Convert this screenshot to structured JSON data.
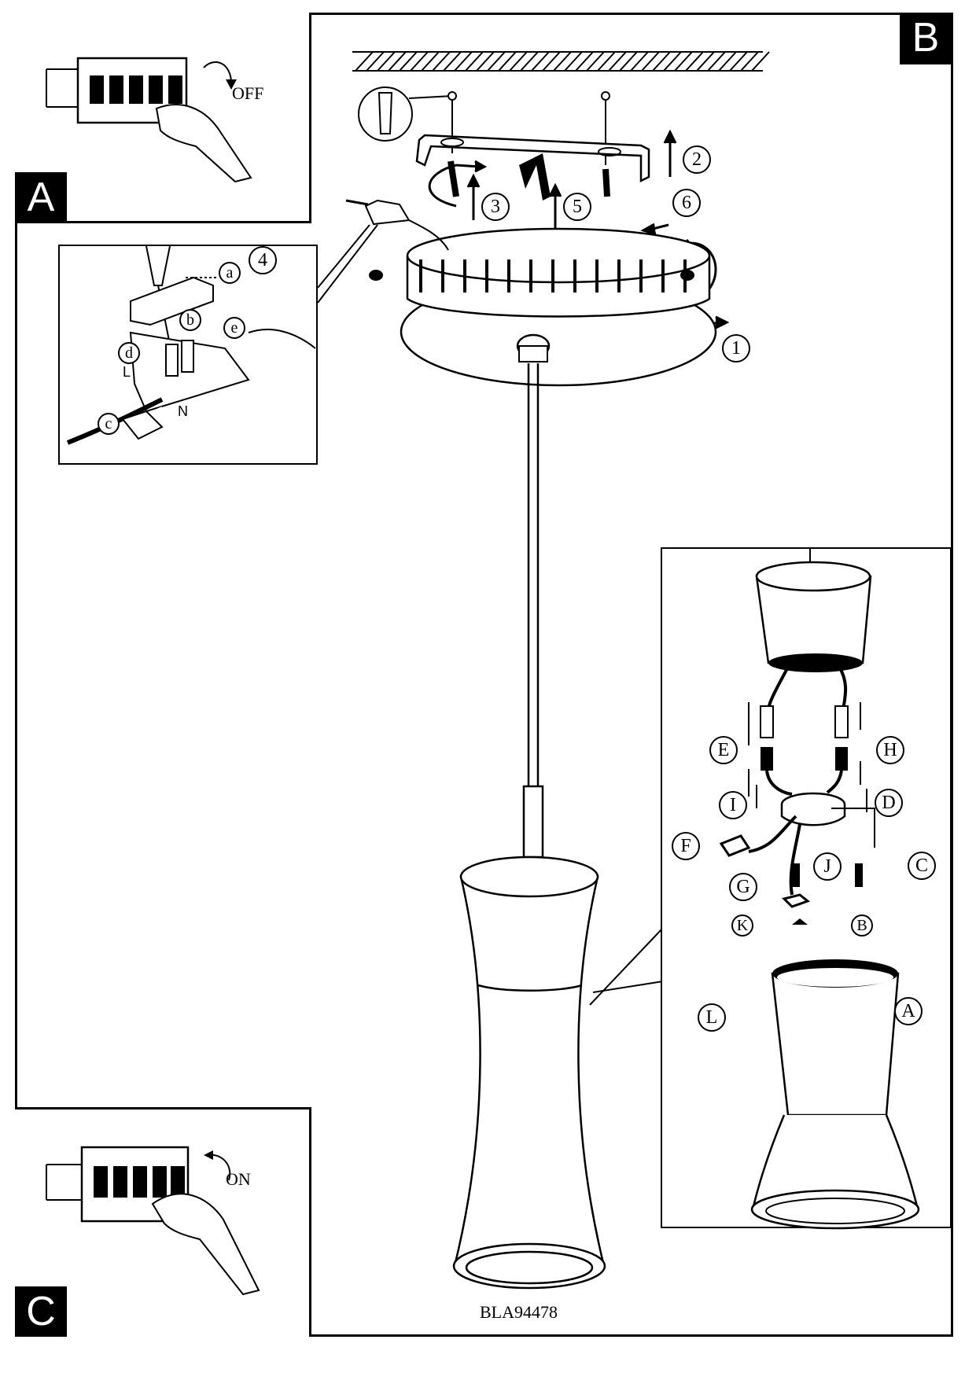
{
  "panels": {
    "a": {
      "tag": "A",
      "switch_label": "OFF"
    },
    "b": {
      "tag": "B"
    },
    "c": {
      "tag": "C",
      "switch_label": "ON"
    }
  },
  "steps": {
    "s1": "1",
    "s2": "2",
    "s3": "3",
    "s4": "4",
    "s5": "5",
    "s6": "6"
  },
  "wiring_steps": {
    "a": "a",
    "b": "b",
    "c": "c",
    "d": "d",
    "e": "e"
  },
  "wiring_marks": {
    "l": "L",
    "n": "N"
  },
  "detail_steps": {
    "A": "A",
    "B": "B",
    "C": "C",
    "D": "D",
    "E": "E",
    "F": "F",
    "G": "G",
    "H": "H",
    "I": "I",
    "J": "J",
    "K": "K",
    "L": "L"
  },
  "model_code": "BLA94478"
}
